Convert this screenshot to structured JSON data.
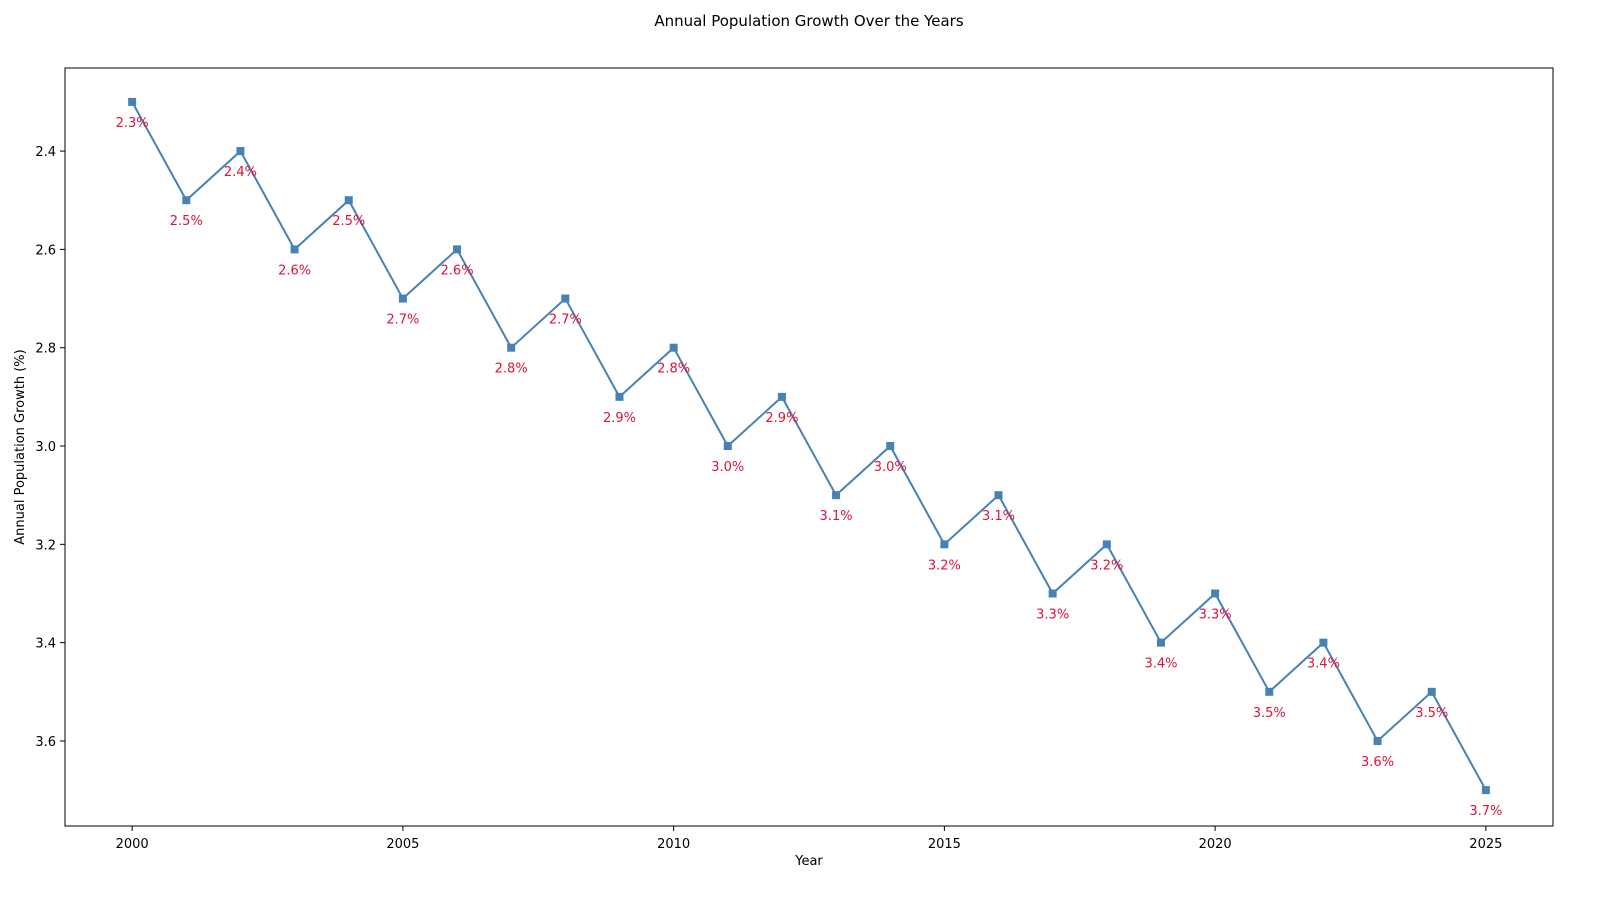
{
  "chart_data": {
    "type": "line",
    "title": "Annual Population Growth Over the Years",
    "xlabel": "Year",
    "ylabel": "Annual Population Growth (%)",
    "x": [
      2000,
      2001,
      2002,
      2003,
      2004,
      2005,
      2006,
      2007,
      2008,
      2009,
      2010,
      2011,
      2012,
      2013,
      2014,
      2015,
      2016,
      2017,
      2018,
      2019,
      2020,
      2021,
      2022,
      2023,
      2024,
      2025
    ],
    "values": [
      2.3,
      2.5,
      2.4,
      2.6,
      2.5,
      2.7,
      2.6,
      2.8,
      2.7,
      2.9,
      2.8,
      3.0,
      2.9,
      3.1,
      3.0,
      3.2,
      3.1,
      3.3,
      3.2,
      3.4,
      3.3,
      3.5,
      3.4,
      3.6,
      3.5,
      3.7
    ],
    "value_labels": [
      "2.3%",
      "2.5%",
      "2.4%",
      "2.6%",
      "2.5%",
      "2.7%",
      "2.6%",
      "2.8%",
      "2.7%",
      "2.9%",
      "2.8%",
      "3.0%",
      "2.9%",
      "3.1%",
      "3.0%",
      "3.2%",
      "3.1%",
      "3.3%",
      "3.2%",
      "3.4%",
      "3.3%",
      "3.5%",
      "3.4%",
      "3.6%",
      "3.5%",
      "3.7%"
    ],
    "color": "#4682b4",
    "label_color": "#dc143c",
    "xlim": [
      1998.76,
      2026.24
    ],
    "ylim": [
      3.773,
      2.231
    ],
    "xticks": [
      2000,
      2005,
      2010,
      2015,
      2020,
      2025
    ],
    "yticks": [
      2.4,
      2.6,
      2.8,
      {
        "value": 3.0,
        "label": "3.0"
      },
      3.2,
      3.4,
      3.6
    ],
    "grid": false
  }
}
